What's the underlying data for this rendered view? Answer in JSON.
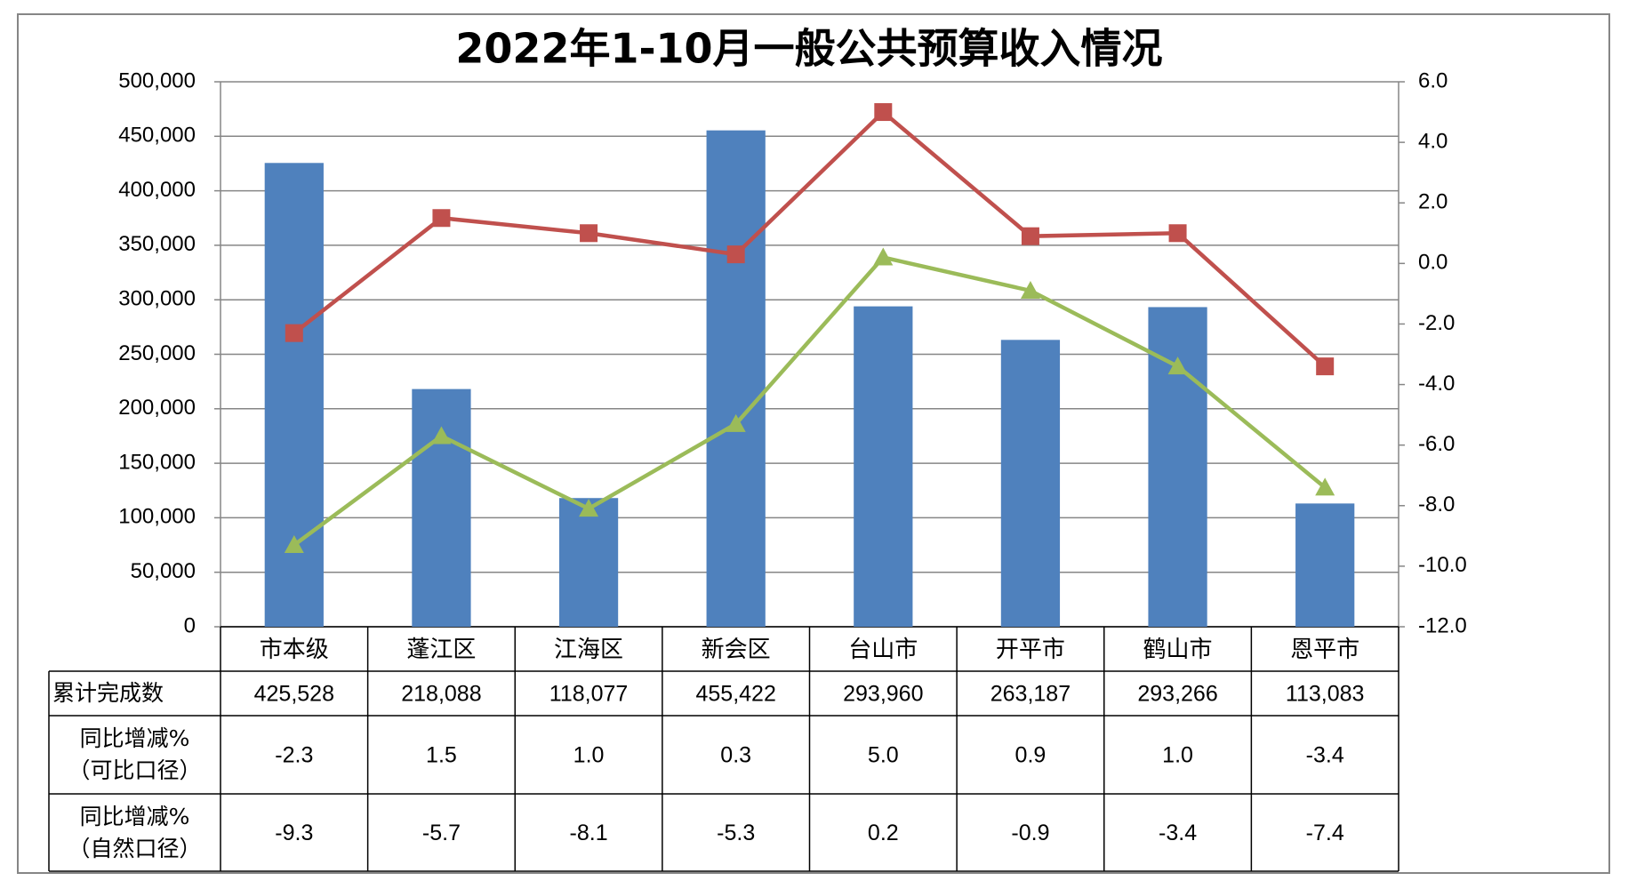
{
  "chart_data": {
    "type": "bar-line-table",
    "title": "2022年1-10月一般公共预算收入情况",
    "categories": [
      "市本级",
      "蓬江区",
      "江海区",
      "新会区",
      "台山市",
      "开平市",
      "鹤山市",
      "恩平市"
    ],
    "series": [
      {
        "name": "累计完成数",
        "type": "bar",
        "color": "#4f81bd",
        "values": [
          425528,
          218088,
          118077,
          455422,
          293960,
          263187,
          293266,
          113083
        ],
        "value_labels": [
          "425,528",
          "218,088",
          "118,077",
          "455,422",
          "293,960",
          "263,187",
          "293,266",
          "113,083"
        ]
      },
      {
        "name": "同比增减%（可比口径）",
        "type": "line",
        "axis": "y2",
        "marker": "square",
        "color": "#c0504d",
        "values": [
          -2.3,
          1.5,
          1.0,
          0.3,
          5.0,
          0.9,
          1.0,
          -3.4
        ],
        "value_labels": [
          "-2.3",
          "1.5",
          "1.0",
          "0.3",
          "5.0",
          "0.9",
          "1.0",
          "-3.4"
        ]
      },
      {
        "name": "同比增减%（自然口径）",
        "type": "line",
        "axis": "y2",
        "marker": "triangle",
        "color": "#9bbb59",
        "values": [
          -9.3,
          -5.7,
          -8.1,
          -5.3,
          0.2,
          -0.9,
          -3.4,
          -7.4
        ],
        "value_labels": [
          "-9.3",
          "-5.7",
          "-8.1",
          "-5.3",
          "0.2",
          "-0.9",
          "-3.4",
          "-7.4"
        ]
      }
    ],
    "ylim": [
      0,
      500000
    ],
    "yticks": [
      0,
      {
        "value": 50000,
        "label": "50,000"
      },
      {
        "value": 100000,
        "label": "100,000"
      },
      {
        "value": 150000,
        "label": "150,000"
      },
      {
        "value": 200000,
        "label": "200,000"
      },
      {
        "value": 250000,
        "label": "250,000"
      },
      {
        "value": 300000,
        "label": "300,000"
      },
      {
        "value": 350000,
        "label": "350,000"
      },
      {
        "value": 400000,
        "label": "400,000"
      },
      {
        "value": 450000,
        "label": "450,000"
      },
      {
        "value": 500000,
        "label": "500,000"
      }
    ],
    "y2lim": [
      -12,
      6
    ],
    "y2ticks": [
      {
        "value": -12,
        "label": "-12.0"
      },
      {
        "value": -10,
        "label": "-10.0"
      },
      {
        "value": -8,
        "label": "-8.0"
      },
      {
        "value": -6,
        "label": "-6.0"
      },
      {
        "value": -4,
        "label": "-4.0"
      },
      {
        "value": -2,
        "label": "-2.0"
      },
      {
        "value": 0,
        "label": "0.0"
      },
      {
        "value": 2,
        "label": "2.0"
      },
      {
        "value": 4,
        "label": "4.0"
      },
      {
        "value": 6,
        "label": "6.0"
      }
    ],
    "grid": true
  }
}
